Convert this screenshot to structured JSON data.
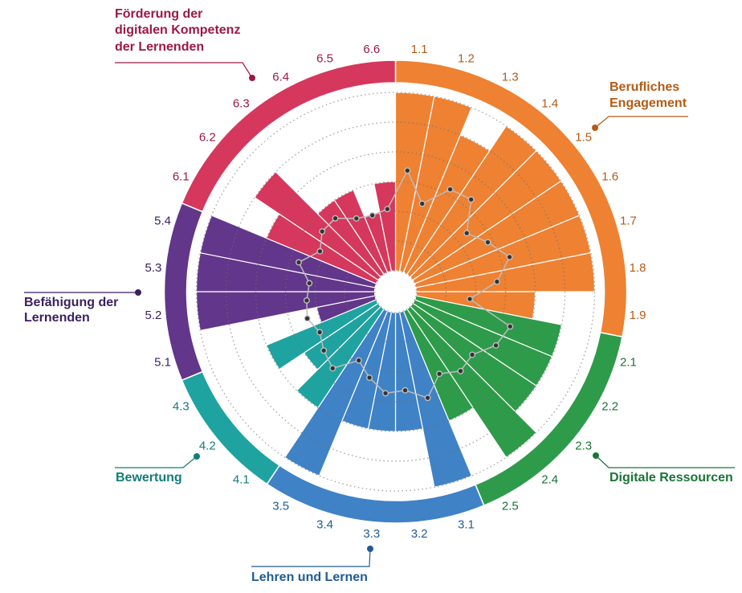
{
  "chart_data": {
    "type": "bar",
    "coordinate_system": "polar",
    "title": "",
    "xlabel": "",
    "ylabel": "",
    "angular_start": "top",
    "direction": "clockwise",
    "legend": "none",
    "radial_axis": {
      "range": [
        0,
        6
      ],
      "gridlines": [
        0,
        1,
        2,
        3,
        4,
        5,
        6
      ],
      "grid": true,
      "grid_style": "dotted",
      "tick_labels": []
    },
    "marker_colors": {
      "point_fill": "#333333",
      "point_stroke": "#c4c4c4",
      "line": "#bdbdbd"
    },
    "groups": [
      {
        "name_lines": [
          "Berufliches",
          "Engagement"
        ],
        "color": "#ee8132",
        "text_color": "#b45b16",
        "items": [
          "1.1",
          "1.2",
          "1.3",
          "1.4",
          "1.5",
          "1.6",
          "1.7",
          "1.8",
          "1.9"
        ]
      },
      {
        "name_lines": [
          "Digitale Ressourcen"
        ],
        "color": "#2e9b4a",
        "text_color": "#1a7437",
        "items": [
          "2.1",
          "2.2",
          "2.3",
          "2.4",
          "2.5"
        ]
      },
      {
        "name_lines": [
          "Lehren und Lernen"
        ],
        "color": "#3f82c6",
        "text_color": "#1f5c95",
        "items": [
          "3.1",
          "3.2",
          "3.3",
          "3.4",
          "3.5"
        ]
      },
      {
        "name_lines": [
          "Bewertung"
        ],
        "color": "#1fa3a0",
        "text_color": "#127d79",
        "items": [
          "4.1",
          "4.2",
          "4.3"
        ]
      },
      {
        "name_lines": [
          "Befähigung der",
          "Lernenden"
        ],
        "color": "#62368a",
        "text_color": "#3b1f5f",
        "items": [
          "5.1",
          "5.2",
          "5.3",
          "5.4"
        ]
      },
      {
        "name_lines": [
          "Förderung der",
          "digitalen Kompetenz",
          "der Lernenden"
        ],
        "color": "#d5385c",
        "text_color": "#9c1846",
        "items": [
          "6.1",
          "6.2",
          "6.3",
          "6.4",
          "6.5",
          "6.6"
        ]
      }
    ],
    "categories": [
      "1.1",
      "1.2",
      "1.3",
      "1.4",
      "1.5",
      "1.6",
      "1.7",
      "1.8",
      "1.9",
      "2.1",
      "2.2",
      "2.3",
      "2.4",
      "2.5",
      "3.1",
      "3.2",
      "3.3",
      "3.4",
      "3.5",
      "4.1",
      "4.2",
      "4.3",
      "5.1",
      "5.2",
      "5.3",
      "5.4",
      "6.1",
      "6.2",
      "6.3",
      "6.4",
      "6.5",
      "6.6"
    ],
    "series": [
      {
        "name": "bars",
        "type": "bar",
        "values": [
          6,
          6,
          5,
          6,
          6,
          6,
          6,
          6,
          4,
          5,
          5,
          5,
          6,
          4,
          6,
          4,
          4,
          4,
          6,
          4,
          3,
          4,
          2,
          6,
          6,
          6,
          4,
          5,
          3,
          3,
          2,
          3
        ]
      },
      {
        "name": "points",
        "type": "line",
        "markers": true,
        "closed": true,
        "values": [
          3.39,
          2.39,
          3.2,
          3.31,
          2.4,
          2.82,
          3.31,
          2.73,
          1.81,
          3.33,
          3.13,
          2.64,
          2.75,
          2.43,
          3.03,
          2.63,
          2.73,
          2.32,
          1.92,
          2.63,
          2.42,
          2.19,
          2.4,
          2.3,
          2.21,
          2.7,
          2.18,
          2.49,
          2.49,
          2.09,
          1.98,
          2.09
        ]
      }
    ]
  }
}
